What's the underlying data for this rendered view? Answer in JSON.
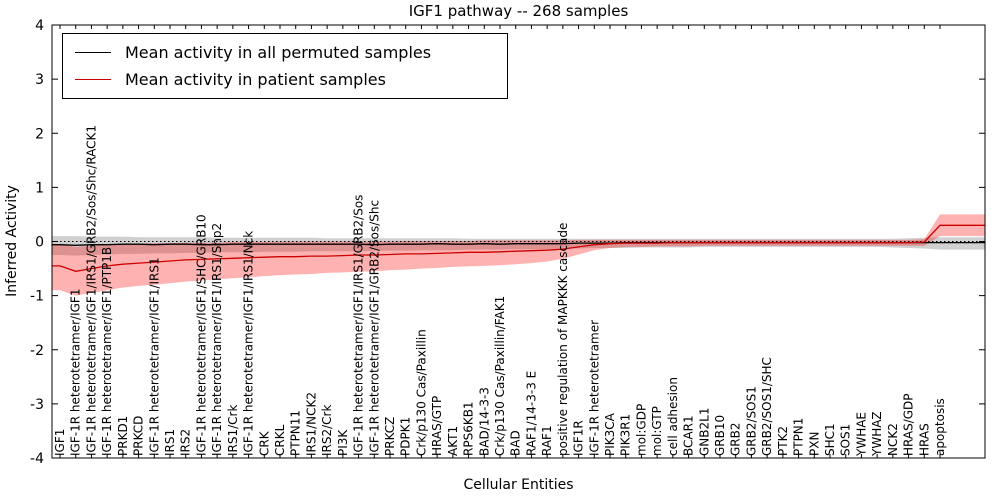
{
  "chart_data": {
    "type": "line",
    "title": "IGF1 pathway -- 268 samples",
    "xlabel": "Cellular Entities",
    "ylabel": "Inferred Activity",
    "ylim": [
      -4,
      4
    ],
    "yticks": [
      -4,
      -3,
      -2,
      -1,
      0,
      1,
      2,
      3,
      4
    ],
    "grid": false,
    "legend_position": "upper left",
    "zero_line": {
      "style": "dotted",
      "color": "#000000",
      "y": 0
    },
    "categories": [
      "IGF1",
      "IGF-1R heterotetramer/IGF1",
      "IGF-1R heterotetramer/IGF1/IRS1/GRB2/Sos/Shc/RACK1",
      "IGF-1R heterotetramer/IGF1/PTP1B",
      "PRKD1",
      "PRKCD",
      "IGF-1R heterotetramer/IGF1/IRS1",
      "IRS1",
      "IRS2",
      "IGF-1R heterotetramer/IGF1/SHC/GRB10",
      "IGF-1R heterotetramer/IGF1/IRS1/Shp2",
      "IRS1/Crk",
      "IGF-1R heterotetramer/IGF1/IRS1/Nck",
      "CRK",
      "CRKL",
      "PTPN11",
      "IRS1/NCK2",
      "IRS2/Crk",
      "PI3K",
      "IGF-1R heterotetramer/IGF1/IRS1/GRB2/Sos",
      "IGF-1R heterotetramer/IGF1/GRB2/Sos/Shc",
      "PRKCZ",
      "PDPK1",
      "Crk/p130 Cas/Paxillin",
      "HRAS/GTP",
      "AKT1",
      "RPS6KB1",
      "BAD/14-3-3",
      "Crk/p130 Cas/Paxillin/FAK1",
      "BAD",
      "RAF1/14-3-3 E",
      "RAF1",
      "positive regulation of MAPKKK cascade",
      "IGF1R",
      "IGF-1R heterotetramer",
      "PIK3CA",
      "PIK3R1",
      "mol:GDP",
      "mol:GTP",
      "cell adhesion",
      "BCAR1",
      "GNB2L1",
      "GRB10",
      "GRB2",
      "GRB2/SOS1",
      "GRB2/SOS1/SHC",
      "PTK2",
      "PTPN1",
      "PXN",
      "SHC1",
      "SOS1",
      "YWHAE",
      "YWHAZ",
      "NCK2",
      "HRAS/GDP",
      "HRAS",
      "apoptosis"
    ],
    "series": [
      {
        "name": "Mean activity in all permuted samples",
        "color": "#000000",
        "band_color": "rgba(120,120,120,0.35)",
        "values": [
          -0.06,
          -0.07,
          -0.06,
          -0.06,
          -0.05,
          -0.05,
          -0.06,
          -0.05,
          -0.05,
          -0.06,
          -0.06,
          -0.05,
          -0.05,
          -0.05,
          -0.05,
          -0.05,
          -0.05,
          -0.05,
          -0.05,
          -0.05,
          -0.06,
          -0.05,
          -0.05,
          -0.05,
          -0.04,
          -0.05,
          -0.05,
          -0.04,
          -0.05,
          -0.04,
          -0.04,
          -0.04,
          -0.04,
          -0.03,
          -0.03,
          -0.03,
          -0.02,
          -0.02,
          -0.02,
          -0.02,
          -0.02,
          -0.02,
          -0.02,
          -0.02,
          -0.02,
          -0.02,
          -0.02,
          -0.02,
          -0.02,
          -0.02,
          -0.02,
          -0.02,
          -0.02,
          -0.02,
          -0.02,
          -0.02,
          -0.02
        ],
        "band_low": [
          -0.25,
          -0.26,
          -0.25,
          -0.24,
          -0.23,
          -0.23,
          -0.22,
          -0.22,
          -0.21,
          -0.21,
          -0.2,
          -0.2,
          -0.2,
          -0.19,
          -0.19,
          -0.19,
          -0.18,
          -0.18,
          -0.18,
          -0.18,
          -0.17,
          -0.17,
          -0.17,
          -0.16,
          -0.16,
          -0.16,
          -0.15,
          -0.15,
          -0.15,
          -0.14,
          -0.14,
          -0.14,
          -0.13,
          -0.13,
          -0.12,
          -0.12,
          -0.12,
          -0.11,
          -0.11,
          -0.11,
          -0.11,
          -0.1,
          -0.1,
          -0.1,
          -0.1,
          -0.1,
          -0.1,
          -0.1,
          -0.1,
          -0.1,
          -0.1,
          -0.1,
          -0.1,
          -0.11,
          -0.12,
          -0.13,
          -0.15
        ],
        "band_high": [
          0.1,
          0.1,
          0.09,
          0.09,
          0.09,
          0.08,
          0.08,
          0.08,
          0.08,
          0.08,
          0.07,
          0.07,
          0.07,
          0.07,
          0.07,
          0.07,
          0.07,
          0.06,
          0.06,
          0.06,
          0.06,
          0.06,
          0.06,
          0.06,
          0.06,
          0.06,
          0.05,
          0.05,
          0.05,
          0.05,
          0.05,
          0.05,
          0.05,
          0.05,
          0.05,
          0.05,
          0.05,
          0.05,
          0.05,
          0.05,
          0.05,
          0.05,
          0.05,
          0.05,
          0.05,
          0.05,
          0.05,
          0.05,
          0.05,
          0.05,
          0.05,
          0.05,
          0.05,
          0.05,
          0.06,
          0.07,
          0.08
        ]
      },
      {
        "name": "Mean activity in patient samples",
        "color": "#cc0000",
        "band_color": "rgba(255,0,0,0.30)",
        "values": [
          -0.45,
          -0.55,
          -0.5,
          -0.45,
          -0.42,
          -0.4,
          -0.38,
          -0.36,
          -0.34,
          -0.33,
          -0.32,
          -0.31,
          -0.3,
          -0.29,
          -0.28,
          -0.28,
          -0.27,
          -0.27,
          -0.26,
          -0.25,
          -0.25,
          -0.24,
          -0.23,
          -0.23,
          -0.22,
          -0.21,
          -0.2,
          -0.2,
          -0.19,
          -0.18,
          -0.17,
          -0.16,
          -0.14,
          -0.1,
          -0.06,
          -0.04,
          -0.03,
          -0.03,
          -0.03,
          -0.02,
          -0.02,
          -0.02,
          -0.02,
          -0.02,
          -0.02,
          -0.02,
          -0.02,
          -0.02,
          -0.02,
          -0.02,
          -0.02,
          -0.02,
          -0.02,
          -0.02,
          -0.02,
          -0.01,
          0.3
        ],
        "band_low": [
          -0.9,
          -1.0,
          -0.95,
          -0.9,
          -0.85,
          -0.82,
          -0.8,
          -0.77,
          -0.74,
          -0.72,
          -0.7,
          -0.68,
          -0.66,
          -0.64,
          -0.62,
          -0.61,
          -0.6,
          -0.58,
          -0.57,
          -0.56,
          -0.55,
          -0.53,
          -0.52,
          -0.5,
          -0.49,
          -0.47,
          -0.46,
          -0.45,
          -0.44,
          -0.42,
          -0.4,
          -0.37,
          -0.32,
          -0.24,
          -0.16,
          -0.12,
          -0.1,
          -0.1,
          -0.09,
          -0.09,
          -0.09,
          -0.08,
          -0.08,
          -0.08,
          -0.08,
          -0.08,
          -0.08,
          -0.08,
          -0.08,
          -0.08,
          -0.08,
          -0.08,
          -0.08,
          -0.08,
          -0.08,
          -0.08,
          0.1
        ],
        "band_high": [
          -0.05,
          -0.1,
          -0.08,
          -0.06,
          -0.05,
          -0.04,
          -0.03,
          -0.03,
          -0.02,
          -0.02,
          -0.02,
          -0.01,
          -0.01,
          -0.01,
          0.0,
          0.0,
          0.0,
          0.0,
          0.0,
          0.0,
          0.0,
          0.0,
          0.01,
          0.01,
          0.01,
          0.01,
          0.01,
          0.02,
          0.02,
          0.02,
          0.02,
          0.02,
          0.02,
          0.03,
          0.03,
          0.03,
          0.03,
          0.03,
          0.03,
          0.03,
          0.03,
          0.03,
          0.03,
          0.03,
          0.03,
          0.03,
          0.03,
          0.03,
          0.03,
          0.03,
          0.03,
          0.03,
          0.03,
          0.03,
          0.03,
          0.04,
          0.5
        ]
      }
    ]
  }
}
